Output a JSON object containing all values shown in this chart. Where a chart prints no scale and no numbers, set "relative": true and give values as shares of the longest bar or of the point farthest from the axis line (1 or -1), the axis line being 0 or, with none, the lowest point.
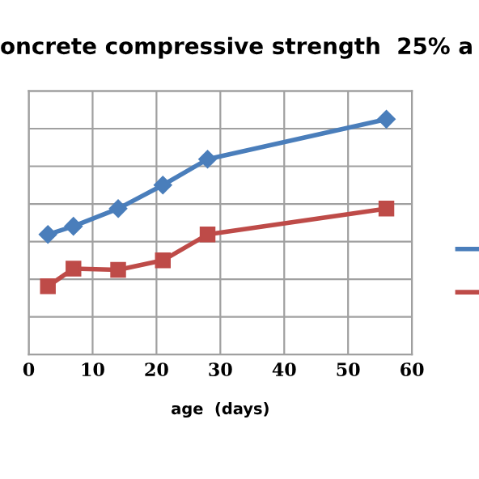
{
  "chart_data": {
    "type": "line",
    "title": "oncrete compressive strength  25% a",
    "xlabel": "age  (days)",
    "x": [
      3,
      7,
      14,
      21,
      28,
      56
    ],
    "relative": true,
    "series": [
      {
        "color": "#4a7ebb",
        "marker": "diamond",
        "values": [
          0.51,
          0.545,
          0.62,
          0.72,
          0.83,
          1
        ]
      },
      {
        "color": "#be4b48",
        "marker": "square",
        "values": [
          0.29,
          0.365,
          0.36,
          0.4,
          0.51,
          0.62
        ]
      }
    ],
    "xlim": [
      0,
      60
    ],
    "xticks": [
      0,
      10,
      20,
      30,
      40,
      50,
      60
    ],
    "grid": true,
    "line_style": "solid"
  }
}
